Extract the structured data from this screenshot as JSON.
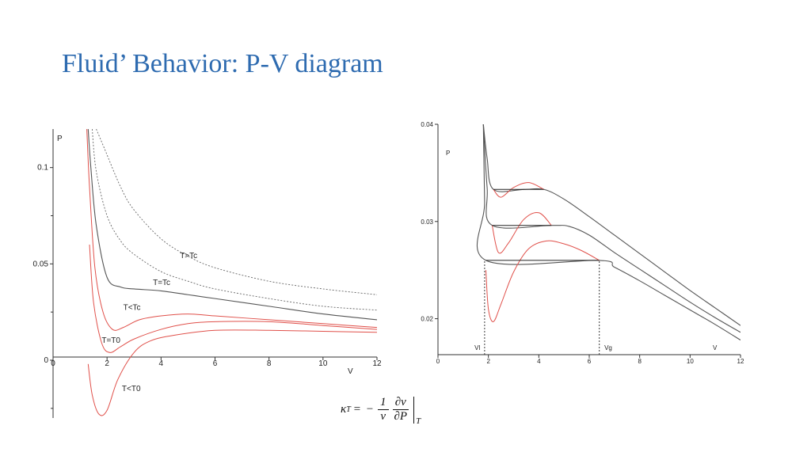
{
  "slide": {
    "title": "Fluid’ Behavior: P-V diagram"
  },
  "formula": {
    "lhs": "κ",
    "lhs_sub": "T",
    "equals": "=",
    "minus": "−",
    "frac1_num": "1",
    "frac1_den": "v",
    "frac2_num": "∂v",
    "frac2_den": "∂P",
    "eval_sub": "T"
  },
  "chart_data": [
    {
      "type": "line",
      "xlabel": "V",
      "ylabel": "P",
      "xlim": [
        0,
        12
      ],
      "ylim": [
        -0.03,
        0.12
      ],
      "xticks": [
        0,
        2,
        4,
        6,
        8,
        10,
        12
      ],
      "xtick_labels": [
        "0",
        "2",
        "4",
        "6",
        "8",
        "10",
        "12"
      ],
      "yticks": [
        0,
        0.05,
        0.1
      ],
      "ytick_labels": [
        "0",
        "0.05",
        "0.1"
      ],
      "grid": false,
      "colors": {
        "solid": "#555555",
        "red": "#e0504a",
        "dotted": "#666666"
      },
      "series": [
        {
          "style": "dotted",
          "x": [
            1.6,
            1.9,
            2.5,
            3.0,
            4.0,
            5.0,
            6.0,
            8.0,
            10.0,
            12.0
          ],
          "y": [
            0.12,
            0.11,
            0.09,
            0.078,
            0.063,
            0.054,
            0.048,
            0.041,
            0.037,
            0.034
          ]
        },
        {
          "style": "dotted",
          "x": [
            1.45,
            1.6,
            2.0,
            2.5,
            3.0,
            4.0,
            5.0,
            6.0,
            8.0,
            10.0,
            12.0
          ],
          "y": [
            0.12,
            0.098,
            0.075,
            0.062,
            0.055,
            0.046,
            0.041,
            0.037,
            0.032,
            0.028,
            0.026
          ]
        },
        {
          "style": "solid",
          "x": [
            1.3,
            1.4,
            1.6,
            2.0,
            2.5,
            3.0,
            4.0,
            5.0,
            6.0,
            8.0,
            10.0,
            12.0
          ],
          "y": [
            0.12,
            0.1,
            0.07,
            0.043,
            0.038,
            0.037,
            0.036,
            0.034,
            0.032,
            0.028,
            0.024,
            0.021
          ]
        },
        {
          "style": "red",
          "x": [
            1.25,
            1.35,
            1.55,
            1.85,
            2.2,
            2.6,
            3.2,
            4.0,
            5.0,
            6.0,
            8.0,
            10.0,
            12.0
          ],
          "y": [
            0.12,
            0.09,
            0.048,
            0.025,
            0.016,
            0.017,
            0.021,
            0.023,
            0.024,
            0.023,
            0.021,
            0.019,
            0.017
          ]
        },
        {
          "style": "red",
          "x": [
            1.35,
            1.5,
            1.8,
            2.1,
            2.5,
            3.0,
            4.0,
            5.0,
            6.0,
            8.0,
            10.0,
            12.0
          ],
          "y": [
            0.06,
            0.03,
            0.009,
            0.004,
            0.007,
            0.011,
            0.016,
            0.019,
            0.02,
            0.02,
            0.018,
            0.016
          ]
        },
        {
          "style": "red",
          "x": [
            1.3,
            1.45,
            1.7,
            2.0,
            2.4,
            3.0,
            3.6,
            4.5,
            6.0,
            8.0,
            10.0,
            12.0
          ],
          "y": [
            -0.002,
            -0.018,
            -0.028,
            -0.026,
            -0.01,
            0.004,
            0.01,
            0.013,
            0.0155,
            0.0155,
            0.015,
            0.0145
          ]
        }
      ],
      "annotations": [
        {
          "text": "T>Tc",
          "x": 4.7,
          "y": 0.053
        },
        {
          "text": "T=Tc",
          "x": 3.7,
          "y": 0.039
        },
        {
          "text": "T<Tc",
          "x": 2.6,
          "y": 0.026
        },
        {
          "text": "T=T0",
          "x": 1.8,
          "y": 0.009
        },
        {
          "text": "T<T0",
          "x": 2.55,
          "y": -0.016
        }
      ]
    },
    {
      "type": "line",
      "xlabel": "V",
      "ylabel": "P",
      "xlim": [
        0,
        12
      ],
      "ylim": [
        0.0163,
        0.04
      ],
      "xticks": [
        0,
        2,
        4,
        6,
        8,
        10,
        12
      ],
      "xtick_labels": [
        "0",
        "2",
        "4",
        "6",
        "8",
        "10",
        "12"
      ],
      "yticks": [
        0.02,
        0.03,
        0.04
      ],
      "ytick_labels": [
        "0.02",
        "0.03",
        "0.04"
      ],
      "grid": false,
      "colors": {
        "solid": "#555555",
        "red": "#e0504a",
        "dotted": "#222222"
      },
      "series": [
        {
          "style": "solid",
          "x": [
            1.8,
            1.95,
            2.2,
            3.4,
            4.2,
            5.0,
            6.0,
            7.0,
            8.0,
            9.0,
            10.0,
            11.0,
            12.0
          ],
          "y": [
            0.04,
            0.0365,
            0.0333,
            0.0333,
            0.0333,
            0.0323,
            0.0305,
            0.0286,
            0.0267,
            0.0248,
            0.0229,
            0.0211,
            0.0193
          ]
        },
        {
          "style": "solid",
          "x": [
            1.8,
            1.95,
            2.15,
            4.5,
            5.2,
            6.0,
            7.0,
            8.0,
            9.0,
            10.0,
            11.0,
            12.0
          ],
          "y": [
            0.04,
            0.0335,
            0.0296,
            0.0296,
            0.0295,
            0.0286,
            0.0268,
            0.0251,
            0.0234,
            0.0217,
            0.0201,
            0.0186
          ]
        },
        {
          "style": "solid",
          "x": [
            1.8,
            1.85,
            1.9,
            6.4,
            7.0,
            8.0,
            9.0,
            10.0,
            11.0,
            12.0
          ],
          "y": [
            0.04,
            0.032,
            0.026,
            0.026,
            0.0253,
            0.0239,
            0.0224,
            0.0209,
            0.0194,
            0.0178
          ]
        },
        {
          "style": "red",
          "x": [
            2.2,
            2.5,
            3.0,
            3.6,
            4.2
          ],
          "y": [
            0.0333,
            0.0325,
            0.0335,
            0.034,
            0.0333
          ]
        },
        {
          "style": "red",
          "x": [
            2.15,
            2.4,
            2.8,
            3.4,
            4.0,
            4.5
          ],
          "y": [
            0.0296,
            0.0268,
            0.0278,
            0.0302,
            0.0309,
            0.0296
          ]
        },
        {
          "style": "red",
          "x": [
            1.9,
            2.0,
            2.2,
            2.5,
            3.0,
            3.6,
            4.3,
            5.0,
            5.7,
            6.4
          ],
          "y": [
            0.025,
            0.021,
            0.0197,
            0.0215,
            0.0248,
            0.0272,
            0.028,
            0.0277,
            0.027,
            0.026
          ]
        },
        {
          "style": "dotted",
          "x": [
            1.85,
            1.85
          ],
          "y": [
            0.0163,
            0.026
          ]
        },
        {
          "style": "dotted",
          "x": [
            6.4,
            6.4
          ],
          "y": [
            0.0163,
            0.026
          ]
        }
      ],
      "annotations": [
        {
          "text": "Vl",
          "x": 1.45,
          "y": 0.0168
        },
        {
          "text": "Vg",
          "x": 6.6,
          "y": 0.0168
        },
        {
          "text": "V",
          "x": 10.9,
          "y": 0.0168
        }
      ]
    }
  ]
}
